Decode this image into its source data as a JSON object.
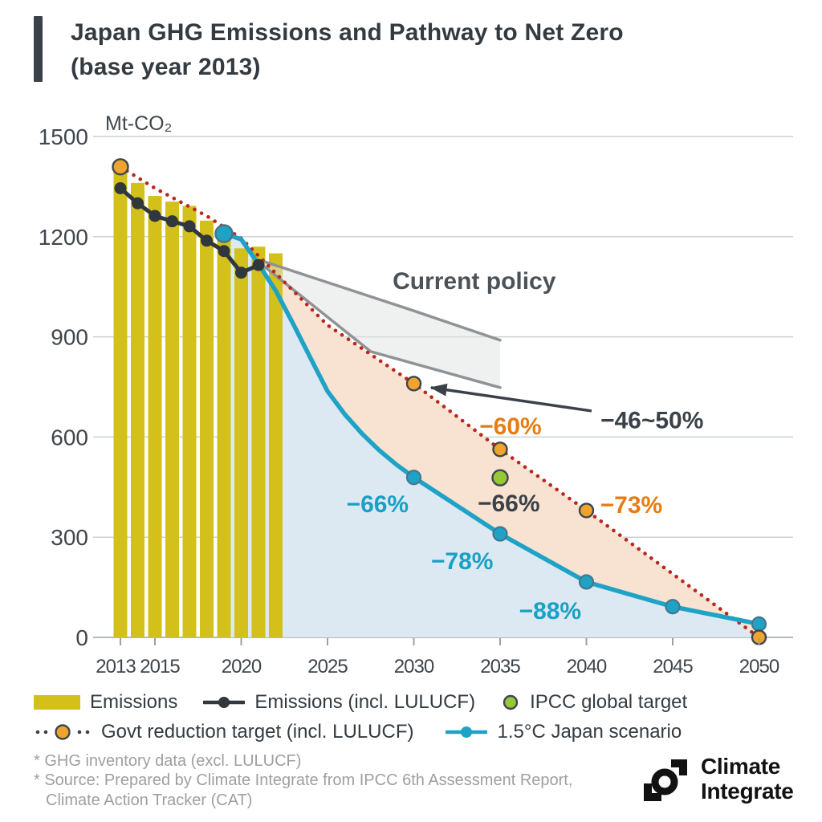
{
  "header": {
    "title_line1": "Japan GHG Emissions and Pathway to Net Zero",
    "title_line2": "(base year 2013)"
  },
  "chart_data": {
    "type": "composite",
    "title": "Japan GHG Emissions and Pathway to Net Zero (base year 2013)",
    "unit_label": "Mt-CO₂",
    "y_axis": {
      "min": 0,
      "max": 1500,
      "ticks": [
        0,
        300,
        600,
        900,
        1200,
        1500
      ]
    },
    "x_axis": {
      "min": 2013,
      "max": 2050,
      "ticks": [
        2013,
        2015,
        2020,
        2025,
        2030,
        2035,
        2040,
        2045,
        2050
      ]
    },
    "series": {
      "emissions_bars": {
        "label": "Emissions",
        "type": "bar",
        "color": "#d4c01b",
        "years": [
          2013,
          2014,
          2015,
          2016,
          2017,
          2018,
          2019,
          2020,
          2021,
          2022
        ],
        "values": [
          1409,
          1361,
          1322,
          1305,
          1292,
          1248,
          1212,
          1165,
          1170,
          1150
        ]
      },
      "emissions_lulucf_line": {
        "label": "Emissions (incl. LULUCF)",
        "type": "line",
        "color": "#30373d",
        "years": [
          2013,
          2014,
          2015,
          2016,
          2017,
          2018,
          2019,
          2020,
          2021
        ],
        "values": [
          1345,
          1300,
          1262,
          1246,
          1231,
          1188,
          1157,
          1092,
          1115
        ]
      },
      "govt_target": {
        "label": "Govt reduction target (incl. LULUCF)",
        "type": "dotted-line",
        "line_color": "#b9281e",
        "marker_color": "#f0a42d",
        "marker_outline": "#3f464c",
        "line_points": [
          [
            2013,
            1409
          ],
          [
            2015,
            1345
          ],
          [
            2018,
            1262
          ],
          [
            2020,
            1195
          ],
          [
            2022,
            1090
          ],
          [
            2025,
            935
          ],
          [
            2030,
            760
          ],
          [
            2035,
            563
          ],
          [
            2040,
            380
          ],
          [
            2050,
            0
          ]
        ],
        "markers": [
          [
            2013,
            1409
          ],
          [
            2030,
            760
          ],
          [
            2035,
            563
          ],
          [
            2040,
            380
          ],
          [
            2050,
            0
          ]
        ]
      },
      "japan_scenario": {
        "label": "1.5°C Japan scenario",
        "type": "line",
        "color": "#1ea2c6",
        "marker_outline": "#47758c",
        "line_points": [
          [
            2019,
            1209
          ],
          [
            2020,
            1192
          ],
          [
            2021,
            1118
          ],
          [
            2022,
            1038
          ],
          [
            2023,
            940
          ],
          [
            2024,
            838
          ],
          [
            2025,
            737
          ],
          [
            2026,
            668
          ],
          [
            2027,
            610
          ],
          [
            2028,
            560
          ],
          [
            2029,
            517
          ],
          [
            2030,
            479
          ],
          [
            2035,
            310
          ],
          [
            2040,
            166
          ],
          [
            2045,
            92
          ],
          [
            2050,
            40
          ]
        ],
        "markers": [
          [
            2019,
            1209
          ],
          [
            2030,
            479
          ],
          [
            2035,
            310
          ],
          [
            2040,
            166
          ],
          [
            2045,
            92
          ],
          [
            2050,
            40
          ]
        ],
        "start_marker_year": 2019
      },
      "ipcc_target": {
        "label": "IPCC global target",
        "type": "point",
        "color": "#96c838",
        "outline": "#3f464c",
        "year": 2035,
        "value": 478
      }
    },
    "areas": {
      "scenario_fill_color": "#dce9f2",
      "gap_fill_color": "#f8e3d2",
      "gap_from_year": 2022
    },
    "current_policy_band": {
      "fill": "#dfe1e2",
      "stroke": "#8f9396",
      "top": [
        [
          2021.35,
          1125
        ],
        [
          2030,
          978
        ],
        [
          2035,
          890
        ]
      ],
      "bottom": [
        [
          2021.35,
          1110
        ],
        [
          2027.5,
          856
        ],
        [
          2035,
          748
        ]
      ]
    },
    "annotations": [
      {
        "id": "current-policy-label",
        "text": "Current policy",
        "color": "#4b5258",
        "x": 2033.5,
        "y": 1068,
        "size": 30
      },
      {
        "id": "govt-2030-range-label",
        "text": "−46~50%",
        "color": "#3a4148",
        "x": 2043.8,
        "y": 652,
        "size": 30
      },
      {
        "id": "govt-2035-label",
        "text": "−60%",
        "color": "#e87c12",
        "x": 2035.6,
        "y": 633,
        "size": 30
      },
      {
        "id": "ipcc-2035-label",
        "text": "−66%",
        "color": "#3a4148",
        "x": 2035.5,
        "y": 403,
        "size": 30
      },
      {
        "id": "govt-2040-label",
        "text": "−73%",
        "color": "#e87c12",
        "x": 2042.6,
        "y": 398,
        "size": 30
      },
      {
        "id": "scenario-2030-label",
        "text": "−66%",
        "color": "#18a0c5",
        "x": 2027.9,
        "y": 400,
        "size": 30
      },
      {
        "id": "scenario-2035-label",
        "text": "−78%",
        "color": "#18a0c5",
        "x": 2032.8,
        "y": 230,
        "size": 30
      },
      {
        "id": "scenario-2040-label",
        "text": "−88%",
        "color": "#18a0c5",
        "x": 2037.9,
        "y": 80,
        "size": 30
      }
    ],
    "arrow": {
      "from": [
        2040.3,
        678
      ],
      "to": [
        2031.0,
        748
      ],
      "color": "#3a4148"
    }
  },
  "legend": {
    "rows": [
      [
        {
          "marker": "bar",
          "color": "#d4c01b",
          "label": "Emissions"
        },
        {
          "marker": "line-dot",
          "color": "#30373d",
          "label": "Emissions (incl. LULUCF)"
        },
        {
          "marker": "dot",
          "color": "#96c838",
          "outline": "#3f464c",
          "label": "IPCC global target"
        }
      ],
      [
        {
          "marker": "dotted-dot",
          "color": "#f0a42d",
          "outline": "#3f464c",
          "dot_color": "#3a4148",
          "label": "Govt reduction target (incl. LULUCF)"
        },
        {
          "marker": "line-dot",
          "color": "#1ea2c6",
          "label": "1.5°C Japan scenario"
        }
      ]
    ]
  },
  "footnotes": [
    "* GHG inventory data (excl. LULUCF)",
    "* Source: Prepared by Climate Integrate from  IPCC 6th Assessment Report,",
    "Climate Action Tracker (CAT)"
  ],
  "logo": {
    "line1": "Climate",
    "line2": "Integrate"
  }
}
